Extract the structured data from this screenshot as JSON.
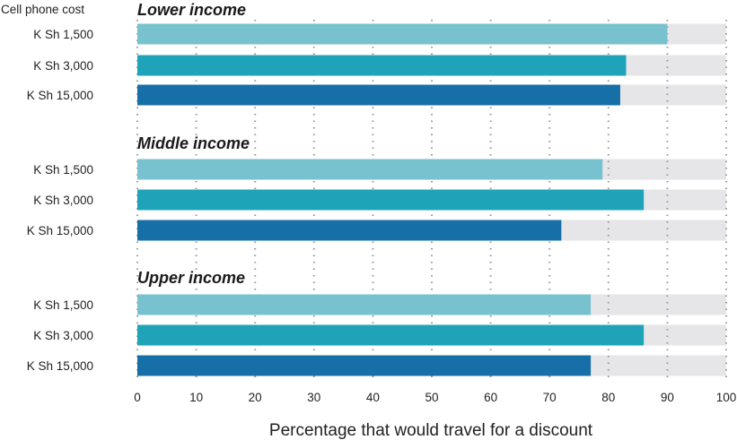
{
  "chart_data": {
    "type": "bar",
    "orientation": "horizontal",
    "xlabel": "Percentage that would travel for a discount",
    "row_header": "Cell phone cost",
    "xlim": [
      0,
      100
    ],
    "x_ticks": [
      0,
      10,
      20,
      30,
      40,
      50,
      60,
      70,
      80,
      90,
      100
    ],
    "grid": "vertical dotted",
    "groups": [
      {
        "name": "Lower income",
        "bars": [
          {
            "label": "K Sh 1,500",
            "value": 90
          },
          {
            "label": "K Sh 3,000",
            "value": 83
          },
          {
            "label": "K Sh 15,000",
            "value": 82
          }
        ]
      },
      {
        "name": "Middle income",
        "bars": [
          {
            "label": "K Sh 1,500",
            "value": 79
          },
          {
            "label": "K Sh 3,000",
            "value": 86
          },
          {
            "label": "K Sh 15,000",
            "value": 72
          }
        ]
      },
      {
        "name": "Upper income",
        "bars": [
          {
            "label": "K Sh 1,500",
            "value": 77
          },
          {
            "label": "K Sh 3,000",
            "value": 86
          },
          {
            "label": "K Sh 15,000",
            "value": 77
          }
        ]
      }
    ],
    "colors": {
      "K Sh 1,500": "#78c1cf",
      "K Sh 3,000": "#1fa3b8",
      "K Sh 15,000": "#176fa8",
      "track": "#e6e6e8",
      "grid": "#9a9a9a"
    }
  }
}
